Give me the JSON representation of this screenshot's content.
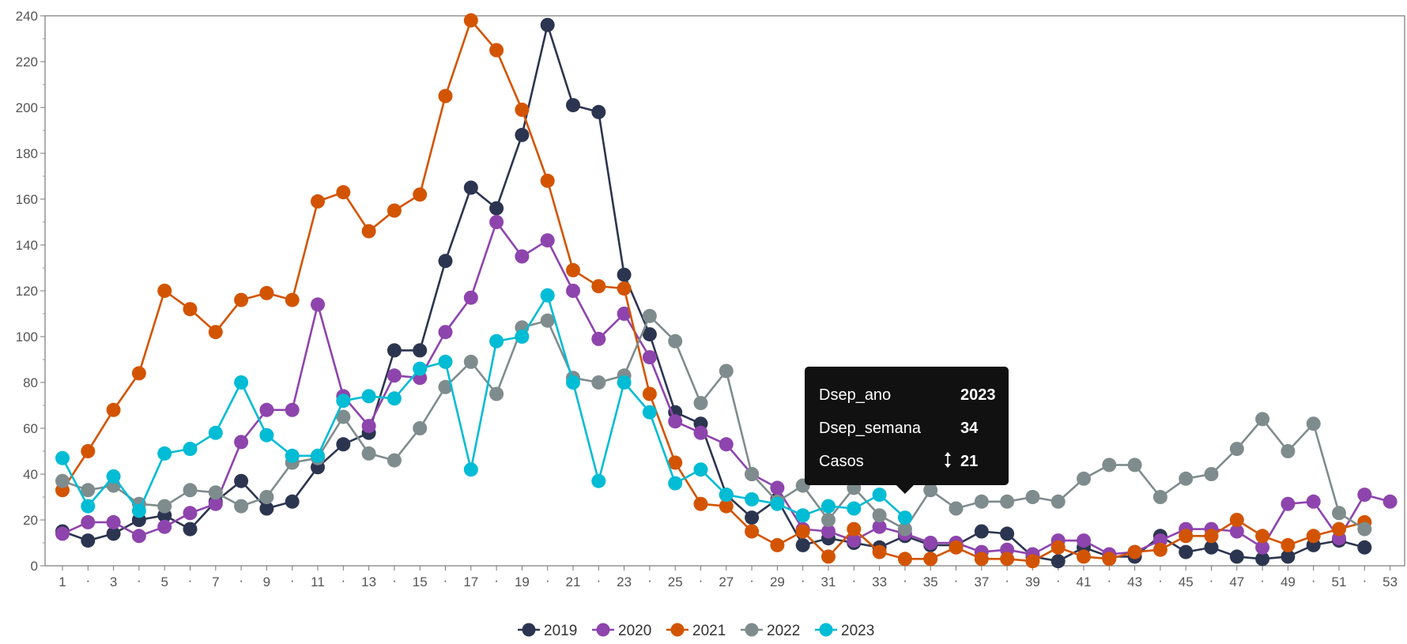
{
  "chart_data": {
    "type": "line",
    "xlabel": "",
    "ylabel": "",
    "xlim": [
      1,
      53
    ],
    "ylim": [
      0,
      240
    ],
    "y_ticks": [
      0,
      20,
      40,
      60,
      80,
      100,
      120,
      140,
      160,
      180,
      200,
      220,
      240
    ],
    "x_ticks_labeled": [
      1,
      3,
      5,
      7,
      9,
      11,
      13,
      15,
      17,
      19,
      21,
      23,
      25,
      27,
      29,
      31,
      33,
      35,
      37,
      39,
      41,
      43,
      45,
      47,
      49,
      51,
      53
    ],
    "x_ticks_minor": [
      2,
      4,
      6,
      8,
      10,
      12,
      14,
      16,
      18,
      20,
      22,
      24,
      26,
      28,
      30,
      32,
      34,
      36,
      38,
      40,
      42,
      44,
      46,
      48,
      50,
      52
    ],
    "x_tick_minor_label": "·",
    "grid": false,
    "legend_position": "bottom-center",
    "series": [
      {
        "name": "2019",
        "color": "#2c3550",
        "x": [
          1,
          2,
          3,
          4,
          5,
          6,
          7,
          8,
          9,
          10,
          11,
          12,
          13,
          14,
          15,
          16,
          17,
          18,
          19,
          20,
          21,
          22,
          23,
          24,
          25,
          26,
          27,
          28,
          29,
          30,
          31,
          32,
          33,
          34,
          35,
          36,
          37,
          38,
          39,
          40,
          41,
          42,
          43,
          44,
          45,
          46,
          47,
          48,
          49,
          50,
          51,
          52
        ],
        "values": [
          15,
          11,
          14,
          20,
          22,
          16,
          28,
          37,
          25,
          28,
          43,
          53,
          58,
          94,
          94,
          133,
          165,
          156,
          188,
          236,
          201,
          198,
          127,
          101,
          67,
          62,
          31,
          21,
          29,
          9,
          12,
          10,
          8,
          13,
          9,
          9,
          15,
          14,
          4,
          2,
          8,
          4,
          4,
          13,
          6,
          8,
          4,
          3,
          4,
          9,
          11,
          8
        ]
      },
      {
        "name": "2020",
        "color": "#8e44ad",
        "x": [
          1,
          2,
          3,
          4,
          5,
          6,
          7,
          8,
          9,
          10,
          11,
          12,
          13,
          14,
          15,
          16,
          17,
          18,
          19,
          20,
          21,
          22,
          23,
          24,
          25,
          26,
          27,
          28,
          29,
          30,
          31,
          32,
          33,
          34,
          35,
          36,
          37,
          38,
          39,
          40,
          41,
          42,
          43,
          44,
          45,
          46,
          47,
          48,
          49,
          50,
          51,
          52,
          53
        ],
        "values": [
          14,
          19,
          19,
          13,
          17,
          23,
          27,
          54,
          68,
          68,
          114,
          74,
          61,
          83,
          82,
          102,
          117,
          150,
          135,
          142,
          120,
          99,
          110,
          91,
          63,
          58,
          53,
          40,
          34,
          16,
          15,
          11,
          17,
          14,
          10,
          10,
          6,
          7,
          5,
          11,
          11,
          5,
          6,
          11,
          16,
          16,
          15,
          8,
          27,
          28,
          12,
          31,
          28
        ]
      },
      {
        "name": "2021",
        "color": "#d35400",
        "x": [
          1,
          2,
          3,
          4,
          5,
          6,
          7,
          8,
          9,
          10,
          11,
          12,
          13,
          14,
          15,
          16,
          17,
          18,
          19,
          20,
          21,
          22,
          23,
          24,
          25,
          26,
          27,
          28,
          29,
          30,
          31,
          32,
          33,
          34,
          35,
          36,
          37,
          38,
          39,
          40,
          41,
          42,
          43,
          44,
          45,
          46,
          47,
          48,
          49,
          50,
          51,
          52
        ],
        "values": [
          33,
          50,
          68,
          84,
          120,
          112,
          102,
          116,
          119,
          116,
          159,
          163,
          146,
          155,
          162,
          205,
          238,
          225,
          199,
          168,
          129,
          122,
          121,
          75,
          45,
          27,
          26,
          15,
          9,
          15,
          4,
          16,
          6,
          3,
          3,
          8,
          3,
          3,
          2,
          8,
          4,
          3,
          6,
          7,
          13,
          13,
          20,
          13,
          9,
          13,
          16,
          19
        ]
      },
      {
        "name": "2022",
        "color": "#7f8c8d",
        "x": [
          1,
          2,
          3,
          4,
          5,
          6,
          7,
          8,
          9,
          10,
          11,
          12,
          13,
          14,
          15,
          16,
          17,
          18,
          19,
          20,
          21,
          22,
          23,
          24,
          25,
          26,
          27,
          28,
          29,
          30,
          31,
          32,
          33,
          34,
          35,
          36,
          37,
          38,
          39,
          40,
          41,
          42,
          43,
          44,
          45,
          46,
          47,
          48,
          49,
          50,
          51,
          52
        ],
        "values": [
          37,
          33,
          35,
          27,
          26,
          33,
          32,
          26,
          30,
          45,
          47,
          65,
          49,
          46,
          60,
          78,
          89,
          75,
          104,
          107,
          82,
          80,
          83,
          109,
          98,
          71,
          85,
          40,
          28,
          35,
          20,
          34,
          22,
          16,
          33,
          25,
          28,
          28,
          30,
          28,
          38,
          44,
          44,
          30,
          38,
          40,
          51,
          64,
          50,
          62,
          23,
          16
        ]
      },
      {
        "name": "2023",
        "color": "#00bcd4",
        "x": [
          1,
          2,
          3,
          4,
          5,
          6,
          7,
          8,
          9,
          10,
          11,
          12,
          13,
          14,
          15,
          16,
          17,
          18,
          19,
          20,
          21,
          22,
          23,
          24,
          25,
          26,
          27,
          28,
          29,
          30,
          31,
          32,
          33,
          34
        ],
        "values": [
          47,
          26,
          39,
          24,
          49,
          51,
          58,
          80,
          57,
          48,
          48,
          72,
          74,
          73,
          86,
          89,
          42,
          98,
          100,
          118,
          80,
          37,
          80,
          67,
          36,
          42,
          31,
          29,
          27,
          22,
          26,
          25,
          31,
          21
        ]
      }
    ]
  },
  "tooltip": {
    "rows": [
      {
        "label": "Dsep_ano",
        "value": "2023"
      },
      {
        "label": "Dsep_semana",
        "value": "34"
      },
      {
        "label": "Casos",
        "value": "21",
        "icon": "vertical-arrows-icon"
      }
    ],
    "anchor_series": "2023",
    "anchor_x": 34,
    "anchor_y": 21,
    "background": "#111111"
  }
}
